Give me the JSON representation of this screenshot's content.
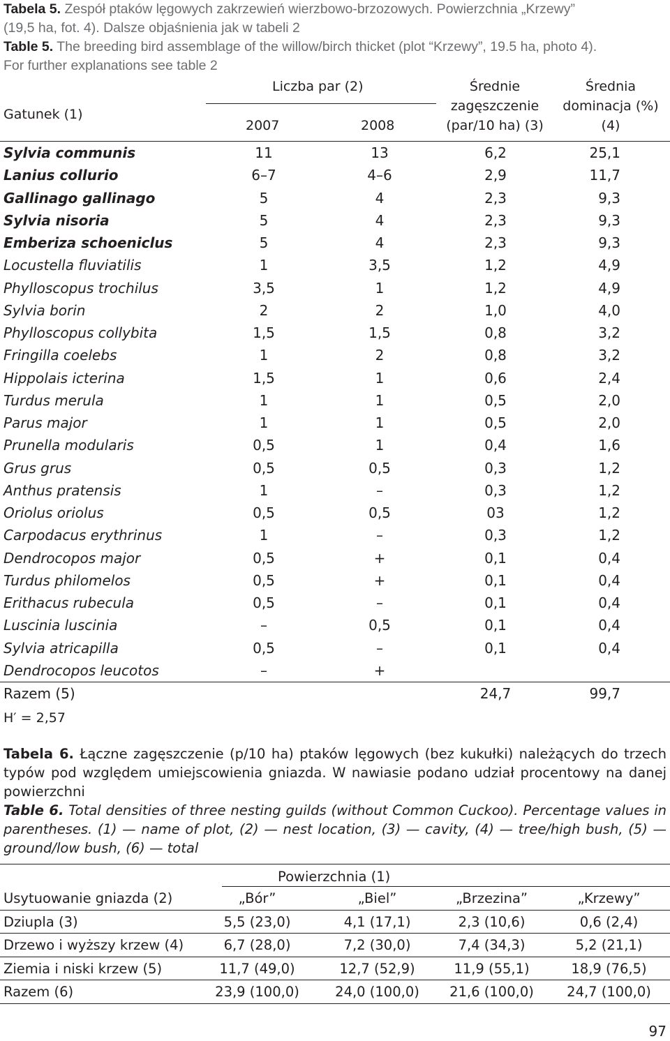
{
  "table5": {
    "caption_pl_label": "Tabela 5.",
    "caption_pl_text_1": "Zespół ptaków lęgowych zakrzewień wierzbowo-brzozowych. Powierzchnia „Krzewy”",
    "caption_pl_text_2": "(19,5 ha, fot. 4). Dalsze objaśnienia jak w tabeli 2",
    "caption_en_label": "Table 5.",
    "caption_en_text_1": "The breeding bird assemblage of the willow/birch thicket (plot “Krzewy”, 19.5 ha, photo 4).",
    "caption_en_text_2": "For further explanations see table 2",
    "headers": {
      "species": "Gatunek (1)",
      "pairs_group": "Liczba par (2)",
      "year1": "2007",
      "year2": "2008",
      "density_1": "Średnie",
      "density_2": "zagęszczenie",
      "density_3": "(par/10 ha) (3)",
      "dominance_1": "Średnia",
      "dominance_2": "dominacja (%)",
      "dominance_3": "(4)"
    },
    "rows": [
      {
        "species": "Sylvia communis",
        "y2007": "11",
        "y2008": "13",
        "density": "6,2",
        "dominance": "25,1"
      },
      {
        "species": "Lanius collurio",
        "y2007": "6–7",
        "y2008": "4–6",
        "density": "2,9",
        "dominance": "11,7"
      },
      {
        "species": "Gallinago gallinago",
        "y2007": "5",
        "y2008": "4",
        "density": "2,3",
        "dominance": "9,3"
      },
      {
        "species": "Sylvia nisoria",
        "y2007": "5",
        "y2008": "4",
        "density": "2,3",
        "dominance": "9,3"
      },
      {
        "species": "Emberiza schoeniclus",
        "y2007": "5",
        "y2008": "4",
        "density": "2,3",
        "dominance": "9,3"
      },
      {
        "species": "Locustella fluviatilis",
        "y2007": "1",
        "y2008": "3,5",
        "density": "1,2",
        "dominance": "4,9"
      },
      {
        "species": "Phylloscopus trochilus",
        "y2007": "3,5",
        "y2008": "1",
        "density": "1,2",
        "dominance": "4,9"
      },
      {
        "species": "Sylvia borin",
        "y2007": "2",
        "y2008": "2",
        "density": "1,0",
        "dominance": "4,0"
      },
      {
        "species": "Phylloscopus collybita",
        "y2007": "1,5",
        "y2008": "1,5",
        "density": "0,8",
        "dominance": "3,2"
      },
      {
        "species": "Fringilla coelebs",
        "y2007": "1",
        "y2008": "2",
        "density": "0,8",
        "dominance": "3,2"
      },
      {
        "species": "Hippolais icterina",
        "y2007": "1,5",
        "y2008": "1",
        "density": "0,6",
        "dominance": "2,4"
      },
      {
        "species": "Turdus merula",
        "y2007": "1",
        "y2008": "1",
        "density": "0,5",
        "dominance": "2,0"
      },
      {
        "species": "Parus major",
        "y2007": "1",
        "y2008": "1",
        "density": "0,5",
        "dominance": "2,0"
      },
      {
        "species": "Prunella modularis",
        "y2007": "0,5",
        "y2008": "1",
        "density": "0,4",
        "dominance": "1,6"
      },
      {
        "species": "Grus grus",
        "y2007": "0,5",
        "y2008": "0,5",
        "density": "0,3",
        "dominance": "1,2"
      },
      {
        "species": "Anthus pratensis",
        "y2007": "1",
        "y2008": "–",
        "density": "0,3",
        "dominance": "1,2"
      },
      {
        "species": "Oriolus oriolus",
        "y2007": "0,5",
        "y2008": "0,5",
        "density": "03",
        "dominance": "1,2"
      },
      {
        "species": "Carpodacus erythrinus",
        "y2007": "1",
        "y2008": "–",
        "density": "0,3",
        "dominance": "1,2"
      },
      {
        "species": "Dendrocopos major",
        "y2007": "0,5",
        "y2008": "+",
        "density": "0,1",
        "dominance": "0,4"
      },
      {
        "species": "Turdus philomelos",
        "y2007": "0,5",
        "y2008": "+",
        "density": "0,1",
        "dominance": "0,4"
      },
      {
        "species": "Erithacus rubecula",
        "y2007": "0,5",
        "y2008": "–",
        "density": "0,1",
        "dominance": "0,4"
      },
      {
        "species": "Luscinia luscinia",
        "y2007": "–",
        "y2008": "0,5",
        "density": "0,1",
        "dominance": "0,4"
      },
      {
        "species": "Sylvia atricapilla",
        "y2007": "0,5",
        "y2008": "–",
        "density": "0,1",
        "dominance": "0,4"
      },
      {
        "species": "Dendrocopos leucotos",
        "y2007": "–",
        "y2008": "+",
        "density": "",
        "dominance": ""
      }
    ],
    "total": {
      "label": "Razem (5)",
      "density": "24,7",
      "dominance": "99,7"
    },
    "diversity": "H′ = 2,57"
  },
  "table6": {
    "caption_pl_label": "Tabela 6.",
    "caption_pl_text": "Łączne zagęszczenie (p/10 ha) ptaków lęgowych (bez kukułki) należących do trzech typów pod względem umiejscowienia gniazda. W nawiasie podano udział procentowy na danej powierzchni",
    "caption_en_label": "Table 6.",
    "caption_en_text": "Total densities of three nesting guilds (without Common Cuckoo). Percentage values in parentheses. (1) — name of plot, (2) — nest location, (3) — cavity, (4) — tree/high bush, (5) — ground/low bush, (6) — total",
    "group_header": "Powierzchnia (1)",
    "row_header": "Usytuowanie gniazda (2)",
    "columns": [
      "„Bór”",
      "„Biel”",
      "„Brzezina”",
      "„Krzewy”"
    ],
    "rows": [
      {
        "label": "Dziupla (3)",
        "values": [
          "5,5 (23,0)",
          "4,1 (17,1)",
          "2,3 (10,6)",
          "0,6 (2,4)"
        ]
      },
      {
        "label": "Drzewo i wyższy krzew (4)",
        "values": [
          "6,7 (28,0)",
          "7,2 (30,0)",
          "7,4 (34,3)",
          "5,2 (21,1)"
        ]
      },
      {
        "label": "Ziemia i niski krzew (5)",
        "values": [
          "11,7 (49,0)",
          "12,7 (52,9)",
          "11,9 (55,1)",
          "18,9 (76,5)"
        ]
      },
      {
        "label": "Razem (6)",
        "values": [
          "23,9 (100,0)",
          "24,0 (100,0)",
          "21,6 (100,0)",
          "24,7 (100,0)"
        ]
      }
    ]
  },
  "page_number": "97"
}
